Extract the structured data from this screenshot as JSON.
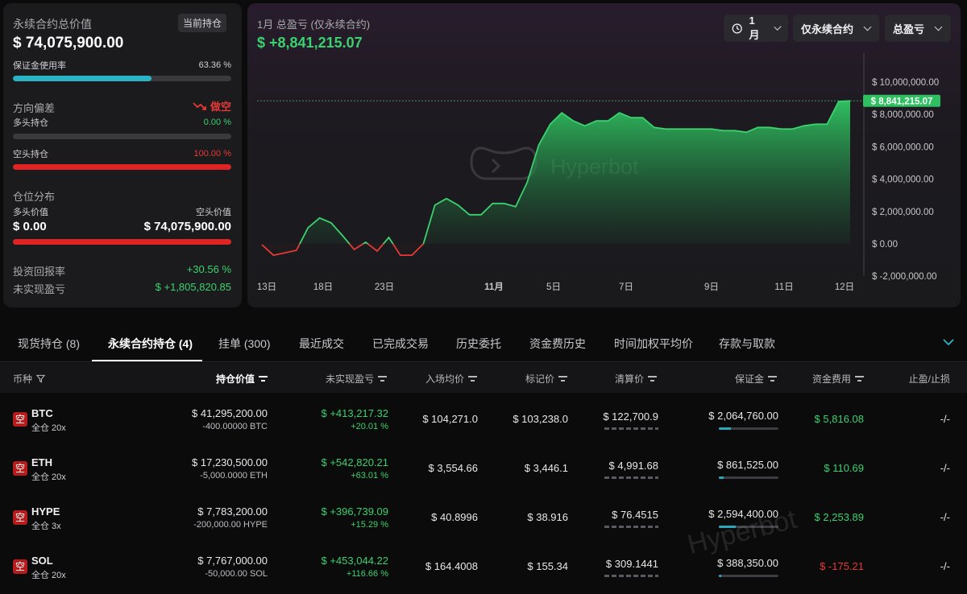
{
  "summary": {
    "total_value_label": "永续合约总价值",
    "current_pos_badge": "当前持仓",
    "total_value": "$ 74,075,900.00",
    "margin_label": "保证金使用率",
    "margin_pct": "63.36 %",
    "margin_fraction": 0.6336,
    "bias_label": "方向偏差",
    "bias_value": "做空",
    "long_label": "多头持仓",
    "long_pct": "0.00 %",
    "long_fraction": 0,
    "short_label": "空头持仓",
    "short_pct": "100.00 %",
    "short_fraction": 1.0,
    "dist_label": "仓位分布",
    "long_value_label": "多头价值",
    "short_value_label": "空头价值",
    "long_value": "$ 0.00",
    "short_value": "$ 74,075,900.00",
    "roi_label": "投资回报率",
    "roi": "+30.56 %",
    "unrealized_label": "未实现盈亏",
    "unrealized": "$ +1,805,820.85"
  },
  "chart_header": {
    "title": "1月 总盈亏 (仅永续合约)",
    "value": "$ +8,841,215.07",
    "period": "1月",
    "scope": "仅永续合约",
    "metric": "总盈亏",
    "watermark": "Hyperbot"
  },
  "chart_data": {
    "type": "area",
    "title": "1月 总盈亏 (仅永续合约)",
    "x_tick_labels": [
      "13日",
      "18日",
      "23日",
      "11月",
      "5日",
      "7日",
      "9日",
      "11日",
      "12日"
    ],
    "y_tick_labels": [
      "$ 10,000,000.00",
      "$ 8,000,000.00",
      "$ 6,000,000.00",
      "$ 4,000,000.00",
      "$ 2,000,000.00",
      "$ 0.00",
      "$ -2,000,000.00"
    ],
    "y_ticks": [
      10000000,
      8000000,
      6000000,
      4000000,
      2000000,
      0,
      -2000000
    ],
    "ylim": [
      -2000000,
      11000000
    ],
    "last_value_label": "$ 8,841,215.07",
    "last_value": 8841215.07,
    "values": [
      -50000,
      -700000,
      -550000,
      -400000,
      1000000,
      1600000,
      1300000,
      500000,
      -350000,
      100000,
      -450000,
      400000,
      -700000,
      -700000,
      0,
      2400000,
      2800000,
      2400000,
      1800000,
      1800000,
      2500000,
      2500000,
      2300000,
      3800000,
      6100000,
      7400000,
      8100000,
      7600000,
      7300000,
      7600000,
      7600000,
      8100000,
      7800000,
      7800000,
      7200000,
      7100000,
      7100000,
      7100000,
      7100000,
      7100000,
      7000000,
      7000000,
      6900000,
      7200000,
      7200000,
      7100000,
      7100000,
      7300000,
      7400000,
      7400000,
      8800000,
      8841215.07
    ]
  },
  "tabs": [
    "现货持仓 (8)",
    "永续合约持仓 (4)",
    "挂单 (300)",
    "最近成交",
    "已完成交易",
    "历史委托",
    "资金费历史",
    "时间加权平均价",
    "存款与取款"
  ],
  "columns": {
    "coin": "币种",
    "position_value": "持仓价值",
    "unrealized": "未实现盈亏",
    "entry": "入场均价",
    "mark": "标记价",
    "liq": "清算价",
    "margin": "保证金",
    "funding": "资金费用",
    "tpsl": "止盈/止损"
  },
  "rows": [
    {
      "side": "空",
      "coin": "BTC",
      "mode": "全仓 20x",
      "value": "$ 41,295,200.00",
      "size": "-400.00000 BTC",
      "upnl": "$ +413,217.32",
      "upnl_pct": "+20.01 %",
      "entry": "$ 104,271.0",
      "mark": "$ 103,238.0",
      "liq": "$ 122,700.9",
      "margin": "$ 2,064,760.00",
      "margin_fraction": 0.2,
      "funding": "$ 5,816.08",
      "funding_positive": true,
      "tpsl": "-/-"
    },
    {
      "side": "空",
      "coin": "ETH",
      "mode": "全仓 20x",
      "value": "$ 17,230,500.00",
      "size": "-5,000.0000 ETH",
      "upnl": "$ +542,820.21",
      "upnl_pct": "+63.01 %",
      "entry": "$ 3,554.66",
      "mark": "$ 3,446.1",
      "liq": "$ 4,991.68",
      "margin": "$ 861,525.00",
      "margin_fraction": 0.08,
      "funding": "$ 110.69",
      "funding_positive": true,
      "tpsl": "-/-"
    },
    {
      "side": "空",
      "coin": "HYPE",
      "mode": "全仓 3x",
      "value": "$ 7,783,200.00",
      "size": "-200,000.00 HYPE",
      "upnl": "$ +396,739.09",
      "upnl_pct": "+15.29 %",
      "entry": "$ 40.8996",
      "mark": "$ 38.916",
      "liq": "$ 76.4515",
      "margin": "$ 2,594,400.00",
      "margin_fraction": 0.28,
      "funding": "$ 2,253.89",
      "funding_positive": true,
      "tpsl": "-/-"
    },
    {
      "side": "空",
      "coin": "SOL",
      "mode": "全仓 20x",
      "value": "$ 7,767,000.00",
      "size": "-50,000.00 SOL",
      "upnl": "$ +453,044.22",
      "upnl_pct": "+116.66 %",
      "entry": "$ 164.4008",
      "mark": "$ 155.34",
      "liq": "$ 309.1441",
      "margin": "$ 388,350.00",
      "margin_fraction": 0.04,
      "funding": "$ -175.21",
      "funding_positive": false,
      "tpsl": "-/-"
    }
  ],
  "colors": {
    "green": "#3bd16f",
    "red": "#e53935",
    "teal": "#2ab3c4",
    "card": "#1b1b1e"
  }
}
